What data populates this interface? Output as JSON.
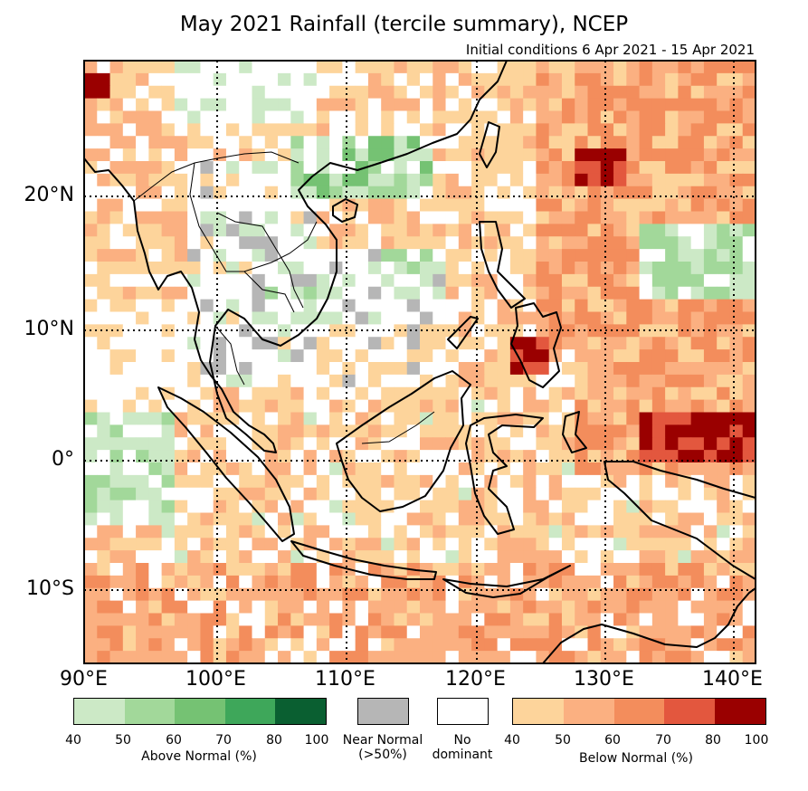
{
  "title": "May 2021 Rainfall (tercile summary), NCEP",
  "subtitle": "Initial conditions 6 Apr 2021 - 15 Apr 2021",
  "lat_labels": [
    "20°N",
    "10°N",
    "0°",
    "10°S"
  ],
  "lon_labels": [
    "90°E",
    "100°E",
    "110°E",
    "120°E",
    "130°E",
    "140°E"
  ],
  "legend": {
    "above": {
      "title": "Above Normal (%)",
      "ticks": [
        "40",
        "50",
        "60",
        "70",
        "80",
        "100"
      ],
      "colors": [
        "#cce9c6",
        "#a2d89a",
        "#75c273",
        "#3ea75a",
        "#0a5f31"
      ]
    },
    "near": {
      "title": "Near Normal\n(>50%)",
      "color": "#b6b6b6"
    },
    "none": {
      "title": "No\ndominant",
      "color": "#ffffff"
    },
    "below": {
      "title": "Below Normal (%)",
      "ticks": [
        "40",
        "50",
        "60",
        "70",
        "80",
        "100"
      ],
      "colors": [
        "#fdd49b",
        "#fbb081",
        "#f38d5c",
        "#e3573e",
        "#9a0000"
      ]
    }
  },
  "chart_data": {
    "type": "heatmap",
    "variable": "May 2021 rainfall tercile probability",
    "lon_range": [
      90,
      142
    ],
    "lat_range": [
      -16,
      30
    ],
    "grid_lines": {
      "lon": [
        90,
        100,
        110,
        120,
        130,
        140
      ],
      "lat": [
        -10,
        0,
        10,
        20
      ]
    },
    "categories": [
      "above normal",
      "near normal",
      "no dominant",
      "below normal"
    ],
    "regions": [
      {
        "name": "western North Pacific (east of Philippines)",
        "category": "below normal",
        "level": "60-80"
      },
      {
        "name": "South China Sea",
        "category": "below normal",
        "level": "40-60"
      },
      {
        "name": "southern China / Gulf of Tonkin",
        "category": "above normal",
        "level": "40-70"
      },
      {
        "name": "Indochina",
        "category": "no dominant",
        "level": "mixed, patches near normal"
      },
      {
        "name": "equatorial western Pacific (north of New Guinea)",
        "category": "below normal",
        "level": "60-100"
      },
      {
        "name": "Mindanao",
        "category": "below normal",
        "level": "70-100"
      },
      {
        "name": "Indian Ocean west of Sumatra",
        "category": "above normal",
        "level": "40-50"
      },
      {
        "name": "Java / southern Indian Ocean",
        "category": "below normal",
        "level": "40-70"
      }
    ]
  }
}
